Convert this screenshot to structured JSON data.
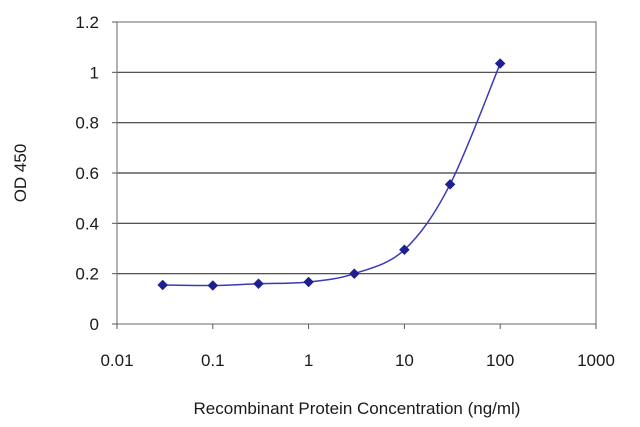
{
  "chart_data": {
    "type": "scatter",
    "title": "",
    "xlabel": "Recombinant Protein Concentration (ng/ml)",
    "ylabel": "OD 450",
    "x_scale": "log",
    "xlim": [
      0.01,
      1000
    ],
    "ylim": [
      0,
      1.2
    ],
    "x_ticks": [
      "0.01",
      "0.1",
      "1",
      "10",
      "100",
      "1000"
    ],
    "y_ticks": [
      "0",
      "0.2",
      "0.4",
      "0.6",
      "0.8",
      "1",
      "1.2"
    ],
    "grid": "horizontal",
    "legend": "none",
    "fit_curve": "smooth",
    "series": [
      {
        "x": [
          0.03,
          0.1,
          0.3,
          1,
          3,
          10,
          30,
          100
        ],
        "y": [
          0.155,
          0.153,
          0.16,
          0.167,
          0.2,
          0.295,
          0.555,
          1.035
        ],
        "color": "#1f1f8f"
      }
    ]
  }
}
